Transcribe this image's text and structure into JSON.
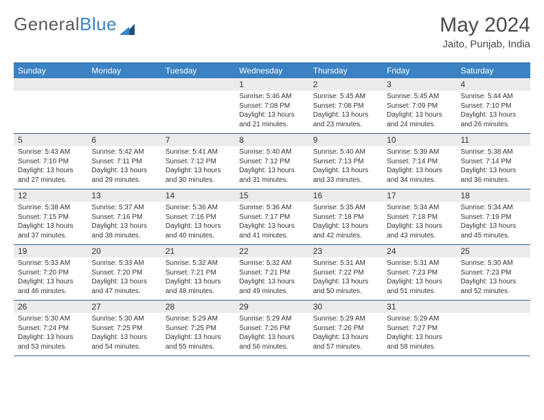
{
  "logo": {
    "part1": "General",
    "part2": "Blue"
  },
  "title": "May 2024",
  "location": "Jaito, Punjab, India",
  "colors": {
    "header_bg": "#3b82c4",
    "header_text": "#ffffff",
    "daynum_bg": "#ebebeb",
    "border": "#2f5f8f",
    "text": "#333333",
    "title_text": "#4a4a4a"
  },
  "weekdays": [
    "Sunday",
    "Monday",
    "Tuesday",
    "Wednesday",
    "Thursday",
    "Friday",
    "Saturday"
  ],
  "weeks": [
    {
      "nums": [
        "",
        "",
        "",
        "1",
        "2",
        "3",
        "4"
      ],
      "cells": [
        null,
        null,
        null,
        {
          "sr": "Sunrise: 5:46 AM",
          "ss": "Sunset: 7:08 PM",
          "d1": "Daylight: 13 hours",
          "d2": "and 21 minutes."
        },
        {
          "sr": "Sunrise: 5:45 AM",
          "ss": "Sunset: 7:08 PM",
          "d1": "Daylight: 13 hours",
          "d2": "and 23 minutes."
        },
        {
          "sr": "Sunrise: 5:45 AM",
          "ss": "Sunset: 7:09 PM",
          "d1": "Daylight: 13 hours",
          "d2": "and 24 minutes."
        },
        {
          "sr": "Sunrise: 5:44 AM",
          "ss": "Sunset: 7:10 PM",
          "d1": "Daylight: 13 hours",
          "d2": "and 26 minutes."
        }
      ]
    },
    {
      "nums": [
        "5",
        "6",
        "7",
        "8",
        "9",
        "10",
        "11"
      ],
      "cells": [
        {
          "sr": "Sunrise: 5:43 AM",
          "ss": "Sunset: 7:10 PM",
          "d1": "Daylight: 13 hours",
          "d2": "and 27 minutes."
        },
        {
          "sr": "Sunrise: 5:42 AM",
          "ss": "Sunset: 7:11 PM",
          "d1": "Daylight: 13 hours",
          "d2": "and 29 minutes."
        },
        {
          "sr": "Sunrise: 5:41 AM",
          "ss": "Sunset: 7:12 PM",
          "d1": "Daylight: 13 hours",
          "d2": "and 30 minutes."
        },
        {
          "sr": "Sunrise: 5:40 AM",
          "ss": "Sunset: 7:12 PM",
          "d1": "Daylight: 13 hours",
          "d2": "and 31 minutes."
        },
        {
          "sr": "Sunrise: 5:40 AM",
          "ss": "Sunset: 7:13 PM",
          "d1": "Daylight: 13 hours",
          "d2": "and 33 minutes."
        },
        {
          "sr": "Sunrise: 5:39 AM",
          "ss": "Sunset: 7:14 PM",
          "d1": "Daylight: 13 hours",
          "d2": "and 34 minutes."
        },
        {
          "sr": "Sunrise: 5:38 AM",
          "ss": "Sunset: 7:14 PM",
          "d1": "Daylight: 13 hours",
          "d2": "and 36 minutes."
        }
      ]
    },
    {
      "nums": [
        "12",
        "13",
        "14",
        "15",
        "16",
        "17",
        "18"
      ],
      "cells": [
        {
          "sr": "Sunrise: 5:38 AM",
          "ss": "Sunset: 7:15 PM",
          "d1": "Daylight: 13 hours",
          "d2": "and 37 minutes."
        },
        {
          "sr": "Sunrise: 5:37 AM",
          "ss": "Sunset: 7:16 PM",
          "d1": "Daylight: 13 hours",
          "d2": "and 38 minutes."
        },
        {
          "sr": "Sunrise: 5:36 AM",
          "ss": "Sunset: 7:16 PM",
          "d1": "Daylight: 13 hours",
          "d2": "and 40 minutes."
        },
        {
          "sr": "Sunrise: 5:36 AM",
          "ss": "Sunset: 7:17 PM",
          "d1": "Daylight: 13 hours",
          "d2": "and 41 minutes."
        },
        {
          "sr": "Sunrise: 5:35 AM",
          "ss": "Sunset: 7:18 PM",
          "d1": "Daylight: 13 hours",
          "d2": "and 42 minutes."
        },
        {
          "sr": "Sunrise: 5:34 AM",
          "ss": "Sunset: 7:18 PM",
          "d1": "Daylight: 13 hours",
          "d2": "and 43 minutes."
        },
        {
          "sr": "Sunrise: 5:34 AM",
          "ss": "Sunset: 7:19 PM",
          "d1": "Daylight: 13 hours",
          "d2": "and 45 minutes."
        }
      ]
    },
    {
      "nums": [
        "19",
        "20",
        "21",
        "22",
        "23",
        "24",
        "25"
      ],
      "cells": [
        {
          "sr": "Sunrise: 5:33 AM",
          "ss": "Sunset: 7:20 PM",
          "d1": "Daylight: 13 hours",
          "d2": "and 46 minutes."
        },
        {
          "sr": "Sunrise: 5:33 AM",
          "ss": "Sunset: 7:20 PM",
          "d1": "Daylight: 13 hours",
          "d2": "and 47 minutes."
        },
        {
          "sr": "Sunrise: 5:32 AM",
          "ss": "Sunset: 7:21 PM",
          "d1": "Daylight: 13 hours",
          "d2": "and 48 minutes."
        },
        {
          "sr": "Sunrise: 5:32 AM",
          "ss": "Sunset: 7:21 PM",
          "d1": "Daylight: 13 hours",
          "d2": "and 49 minutes."
        },
        {
          "sr": "Sunrise: 5:31 AM",
          "ss": "Sunset: 7:22 PM",
          "d1": "Daylight: 13 hours",
          "d2": "and 50 minutes."
        },
        {
          "sr": "Sunrise: 5:31 AM",
          "ss": "Sunset: 7:23 PM",
          "d1": "Daylight: 13 hours",
          "d2": "and 51 minutes."
        },
        {
          "sr": "Sunrise: 5:30 AM",
          "ss": "Sunset: 7:23 PM",
          "d1": "Daylight: 13 hours",
          "d2": "and 52 minutes."
        }
      ]
    },
    {
      "nums": [
        "26",
        "27",
        "28",
        "29",
        "30",
        "31",
        ""
      ],
      "cells": [
        {
          "sr": "Sunrise: 5:30 AM",
          "ss": "Sunset: 7:24 PM",
          "d1": "Daylight: 13 hours",
          "d2": "and 53 minutes."
        },
        {
          "sr": "Sunrise: 5:30 AM",
          "ss": "Sunset: 7:25 PM",
          "d1": "Daylight: 13 hours",
          "d2": "and 54 minutes."
        },
        {
          "sr": "Sunrise: 5:29 AM",
          "ss": "Sunset: 7:25 PM",
          "d1": "Daylight: 13 hours",
          "d2": "and 55 minutes."
        },
        {
          "sr": "Sunrise: 5:29 AM",
          "ss": "Sunset: 7:26 PM",
          "d1": "Daylight: 13 hours",
          "d2": "and 56 minutes."
        },
        {
          "sr": "Sunrise: 5:29 AM",
          "ss": "Sunset: 7:26 PM",
          "d1": "Daylight: 13 hours",
          "d2": "and 57 minutes."
        },
        {
          "sr": "Sunrise: 5:29 AM",
          "ss": "Sunset: 7:27 PM",
          "d1": "Daylight: 13 hours",
          "d2": "and 58 minutes."
        },
        null
      ]
    }
  ]
}
